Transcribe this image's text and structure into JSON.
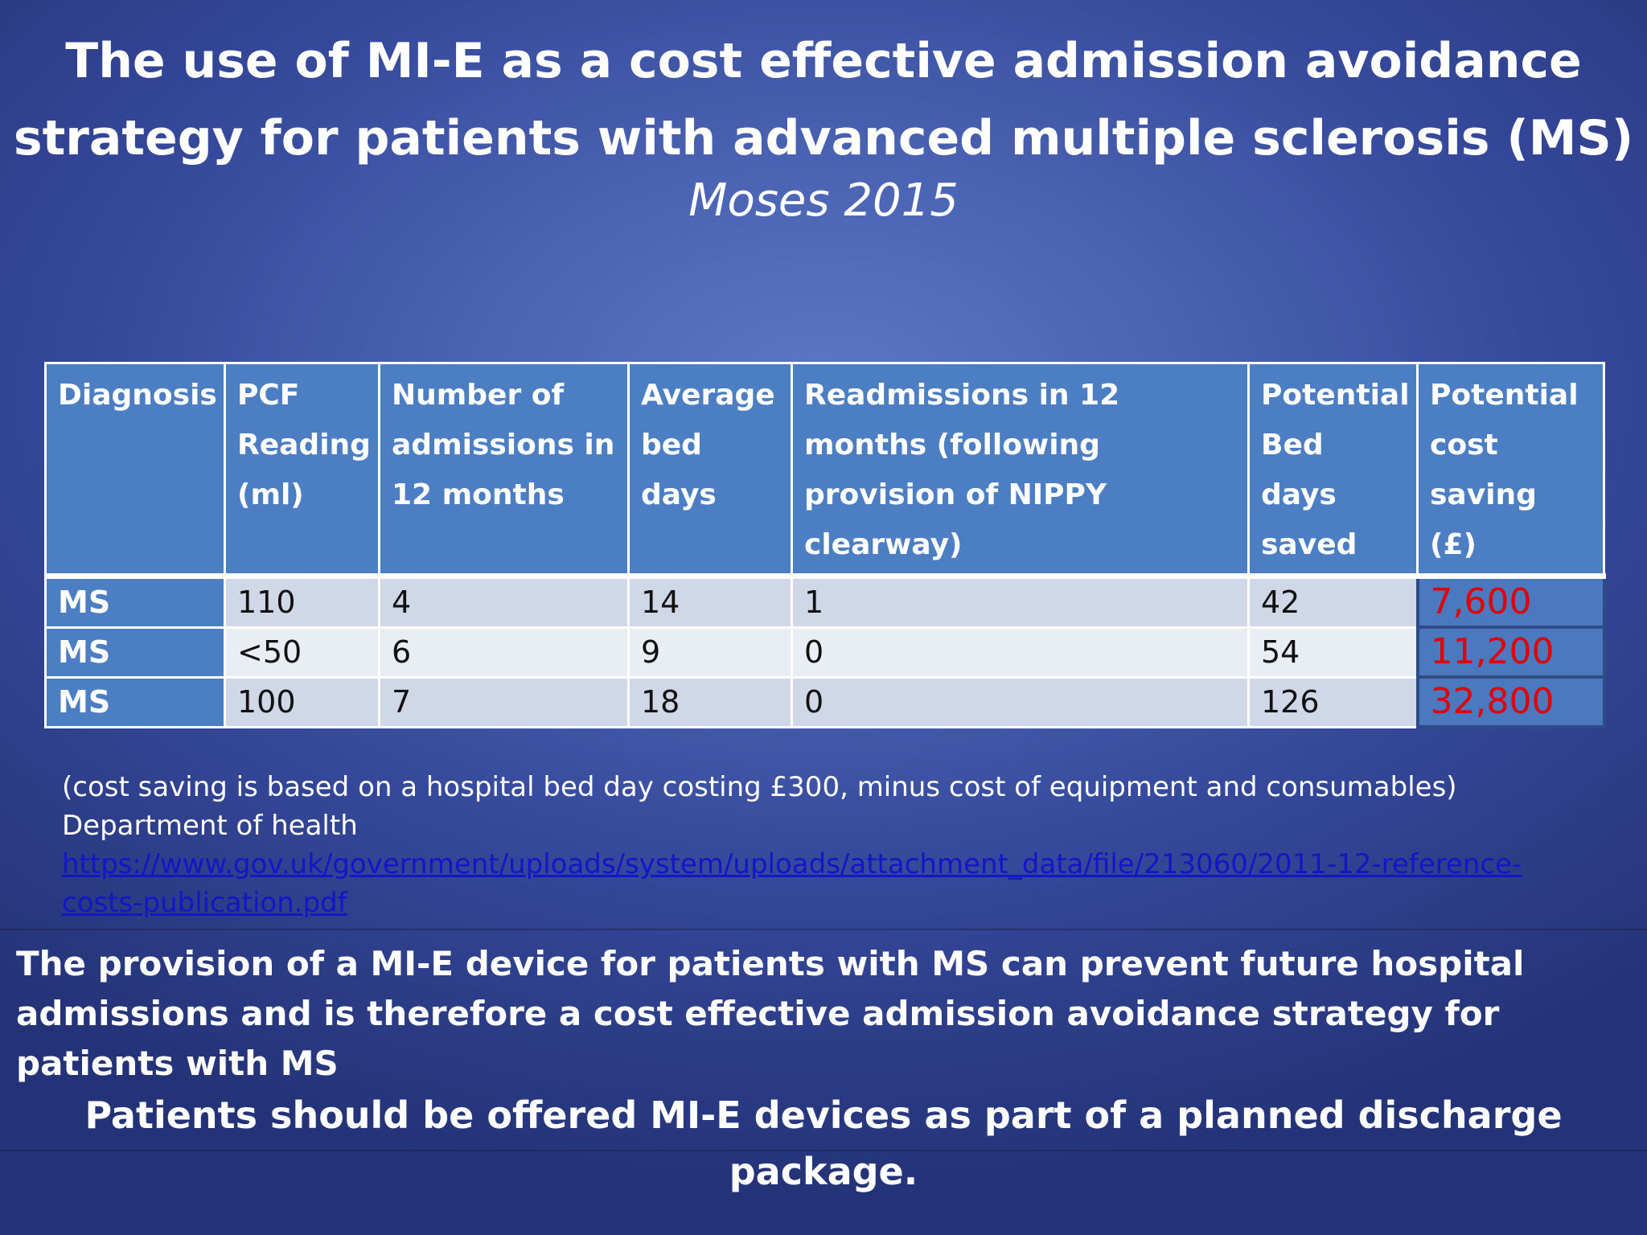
{
  "title": {
    "line1": "The use of MI-E as a cost effective admission avoidance",
    "line2": "strategy for patients with advanced multiple sclerosis (MS)"
  },
  "subtitle": "Moses 2015",
  "table": {
    "headers": [
      "Diagnosis",
      "PCF Reading (ml)",
      "Number of admissions in 12 months",
      "Average bed days",
      "Readmissions in 12 months (following provision of NIPPY clearway)",
      "Potential Bed days saved",
      "Potential cost saving (£)"
    ],
    "rows": [
      [
        "MS",
        "110",
        "4",
        "14",
        "1",
        "42",
        "7,600"
      ],
      [
        "MS",
        "<50",
        "6",
        "9",
        "0",
        "54",
        "11,200"
      ],
      [
        "MS",
        "100",
        "7",
        "18",
        "0",
        "126",
        "32,800"
      ]
    ]
  },
  "footnote": {
    "text": "(cost saving is based on a hospital bed day costing £300, minus cost of equipment and consumables) Department of health ",
    "link": "https://www.gov.uk/government/uploads/system/uploads/attachment_data/file/213060/2011-12-reference-costs-publication.pdf"
  },
  "conclusion": "The provision of a MI-E device for patients with MS can prevent future hospital admissions and is therefore a cost effective admission avoidance strategy for patients with MS",
  "recommendation": "Patients should be offered MI-E devices as part of a planned discharge package.",
  "colors": {
    "header_fill": "#4c7ec4",
    "row_fill_light": "#d0d8e8",
    "row_fill_lighter": "#e9edf4",
    "saving_text": "#e00000",
    "link_text": "#1515c8"
  }
}
